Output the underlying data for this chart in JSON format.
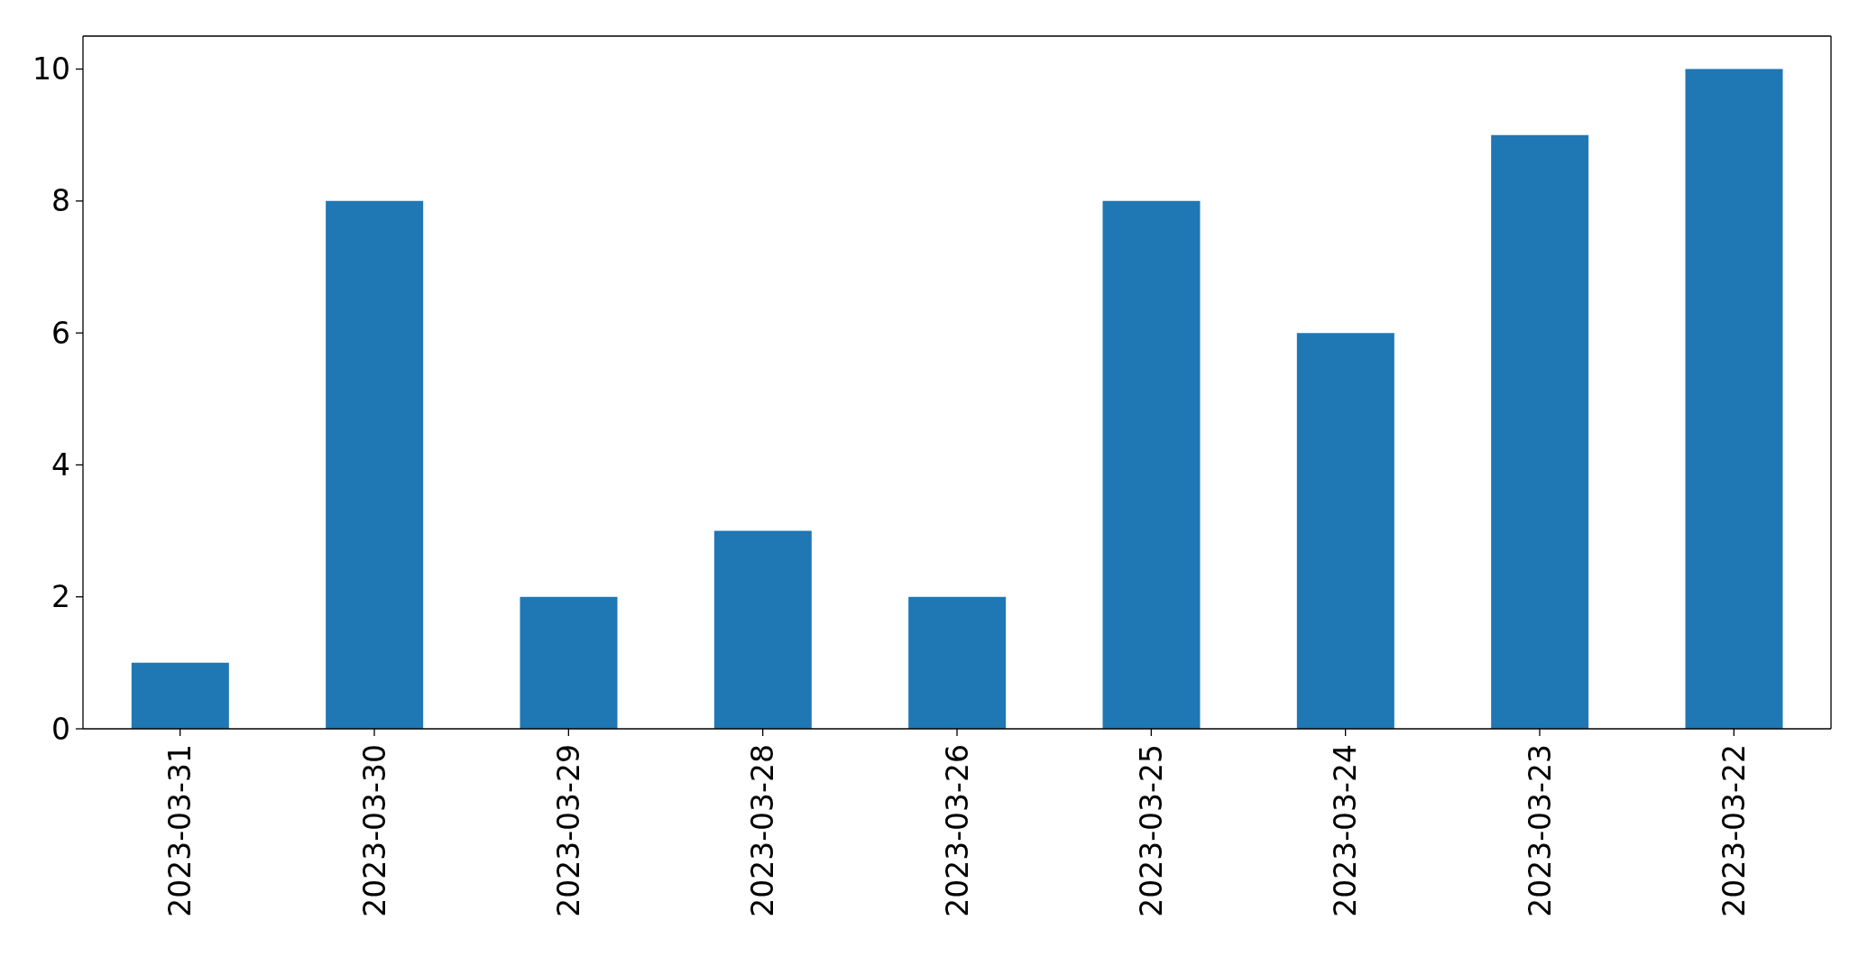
{
  "chart_data": {
    "type": "bar",
    "categories": [
      "2023-03-31",
      "2023-03-30",
      "2023-03-29",
      "2023-03-28",
      "2023-03-26",
      "2023-03-25",
      "2023-03-24",
      "2023-03-23",
      "2023-03-22"
    ],
    "values": [
      1,
      8,
      2,
      3,
      2,
      8,
      6,
      9,
      10
    ],
    "color": "#1f77b4",
    "ylim": [
      0,
      10.5
    ],
    "yticks": [
      0,
      2,
      4,
      6,
      8,
      10
    ]
  }
}
